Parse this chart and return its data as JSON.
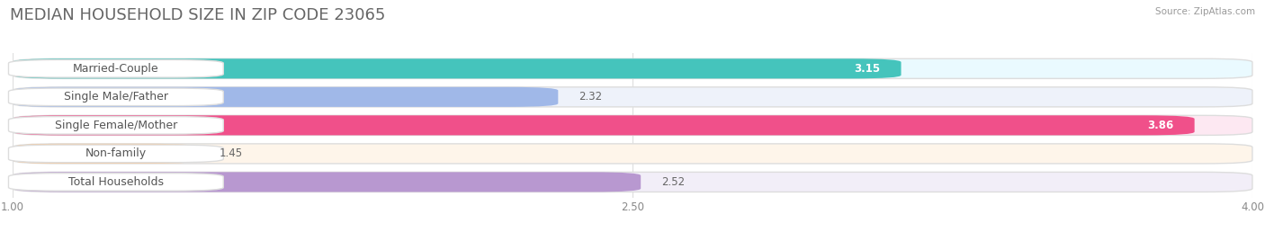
{
  "title": "MEDIAN HOUSEHOLD SIZE IN ZIP CODE 23065",
  "source": "Source: ZipAtlas.com",
  "categories": [
    "Married-Couple",
    "Single Male/Father",
    "Single Female/Mother",
    "Non-family",
    "Total Households"
  ],
  "values": [
    3.15,
    2.32,
    3.86,
    1.45,
    2.52
  ],
  "bar_colors": [
    "#45C4BC",
    "#A0B8E8",
    "#F0508A",
    "#F8C898",
    "#B898D0"
  ],
  "bar_bg_colors": [
    "#EAFAFF",
    "#EEF2FA",
    "#FDE8F2",
    "#FEF5EA",
    "#F2EEF8"
  ],
  "value_inside": [
    true,
    false,
    true,
    false,
    false
  ],
  "xlim_min": 1.0,
  "xlim_max": 4.0,
  "xticks": [
    1.0,
    2.5,
    4.0
  ],
  "title_fontsize": 13,
  "label_fontsize": 9,
  "value_fontsize": 8.5,
  "background_color": "#FFFFFF",
  "bar_bg_full_color": "#F0F0F4"
}
